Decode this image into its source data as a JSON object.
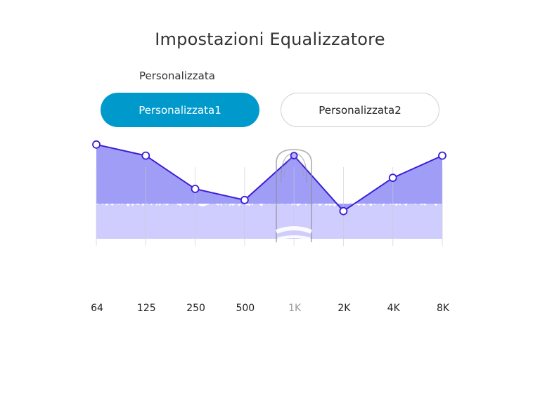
{
  "header": {
    "title": "Impostazioni Equalizzatore"
  },
  "presets": {
    "section_label": "Personalizzata",
    "items": [
      {
        "label": "Personalizzata1",
        "selected": true
      },
      {
        "label": "Personalizzata2",
        "selected": false
      }
    ]
  },
  "colors": {
    "accent": "#0099cc",
    "curve_line": "#3b1fd6",
    "curve_fill": "#9b98f5",
    "spectrum_fill": "#cfcdfd"
  },
  "chart_data": {
    "type": "line",
    "categories": [
      "64",
      "125",
      "250",
      "500",
      "1K",
      "2K",
      "4K",
      "8K"
    ],
    "values": [
      9,
      8,
      5,
      4,
      8,
      3,
      6,
      8
    ],
    "ylim": [
      0,
      10
    ],
    "highlighted_band": "1K",
    "grid": false,
    "legend": "none"
  }
}
